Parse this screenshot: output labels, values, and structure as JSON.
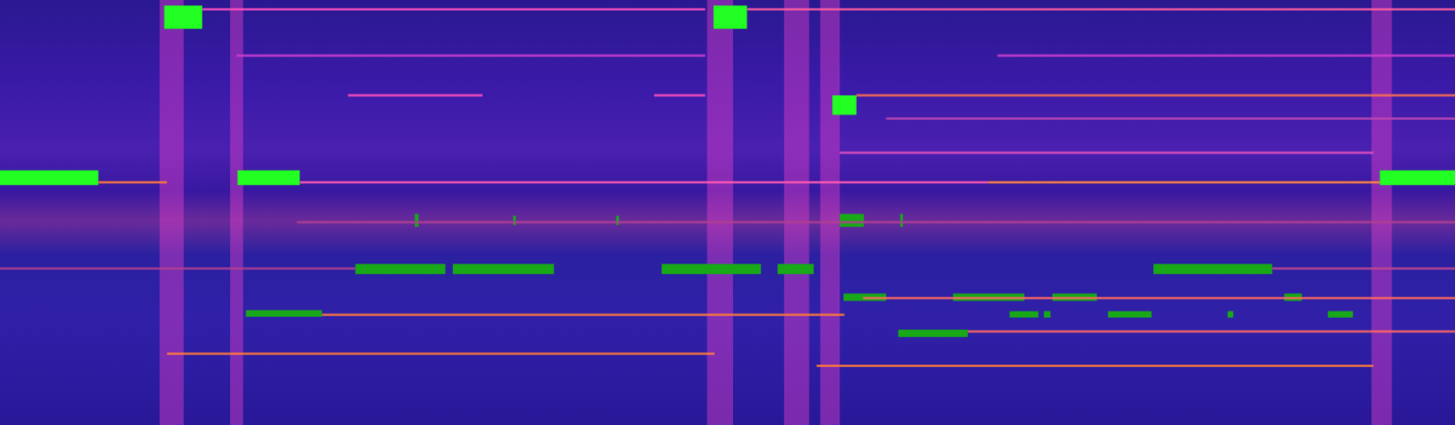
{
  "chart_data": {
    "type": "piano_roll",
    "xlim": [
      0,
      1568
    ],
    "ylim": [
      0,
      459
    ],
    "xticks": [],
    "yticks": [],
    "tick_labels": false,
    "grid": false,
    "onsets": {
      "x0": [
        172,
        248,
        762,
        845,
        884,
        1478
      ],
      "x1": [
        198,
        262,
        790,
        872,
        905,
        1500
      ],
      "color": "#e040c8"
    },
    "traces": {
      "x0": [
        106,
        323,
        1065,
        255,
        1075,
        375,
        705,
        923,
        218,
        805,
        320,
        0,
        1371,
        347,
        930,
        1043,
        180,
        880,
        905,
        955
      ],
      "x1": [
        180,
        1065,
        1487,
        760,
        1568,
        520,
        760,
        1568,
        760,
        1568,
        1568,
        383,
        1568,
        910,
        1568,
        1568,
        770,
        1480,
        1480,
        1568
      ],
      "y": [
        197,
        197,
        197,
        60,
        60,
        103,
        103,
        103,
        10,
        10,
        240,
        290,
        290,
        340,
        322,
        358,
        382,
        395,
        165,
        128
      ],
      "colors": [
        "#ff7a3a",
        "#ff5ab0",
        "#ff8a3a",
        "#d040d0",
        "#d040d0",
        "#ff50c0",
        "#ff50c0",
        "#ff7050",
        "#ff50c0",
        "#ff60a0",
        "#b04090",
        "#b04090",
        "#c04890",
        "#ff7a3a",
        "#ff6a60",
        "#ff6a60",
        "#ff7a3a",
        "#ff7a3a",
        "#e050c0",
        "#c048b0"
      ]
    },
    "notes": {
      "x0": [
        177,
        769,
        897,
        0,
        256,
        1487,
        905,
        447,
        553,
        664,
        970,
        383,
        488,
        713,
        838,
        1243,
        265,
        909,
        1027,
        1134,
        1384,
        1088,
        1125,
        1194,
        1323,
        1431,
        968
      ],
      "x1": [
        218,
        805,
        923,
        106,
        323,
        1568,
        931,
        451,
        556,
        667,
        973,
        480,
        597,
        820,
        877,
        1371,
        347,
        955,
        1104,
        1182,
        1403,
        1119,
        1132,
        1241,
        1329,
        1458,
        1043
      ],
      "y0": [
        6,
        6,
        103,
        184,
        184,
        184,
        231,
        231,
        233,
        233,
        231,
        285,
        285,
        285,
        285,
        285,
        335,
        317,
        317,
        317,
        317,
        336,
        336,
        336,
        336,
        336,
        356
      ],
      "y1": [
        31,
        31,
        124,
        200,
        200,
        200,
        245,
        245,
        243,
        243,
        245,
        296,
        296,
        296,
        296,
        296,
        342,
        325,
        325,
        325,
        325,
        343,
        343,
        343,
        343,
        343,
        364
      ],
      "colors": [
        "#22ff22",
        "#22ff22",
        "#22ff22",
        "#22ff22",
        "#22ff22",
        "#22ff22",
        "#18a818",
        "#18a818",
        "#18a818",
        "#18a818",
        "#18a818",
        "#18a818",
        "#18a818",
        "#18a818",
        "#18a818",
        "#18a818",
        "#18a818",
        "#18a818",
        "#18a818",
        "#18a818",
        "#18a818",
        "#18a818",
        "#18a818",
        "#18a818",
        "#18a818",
        "#18a818",
        "#18a818"
      ]
    }
  }
}
